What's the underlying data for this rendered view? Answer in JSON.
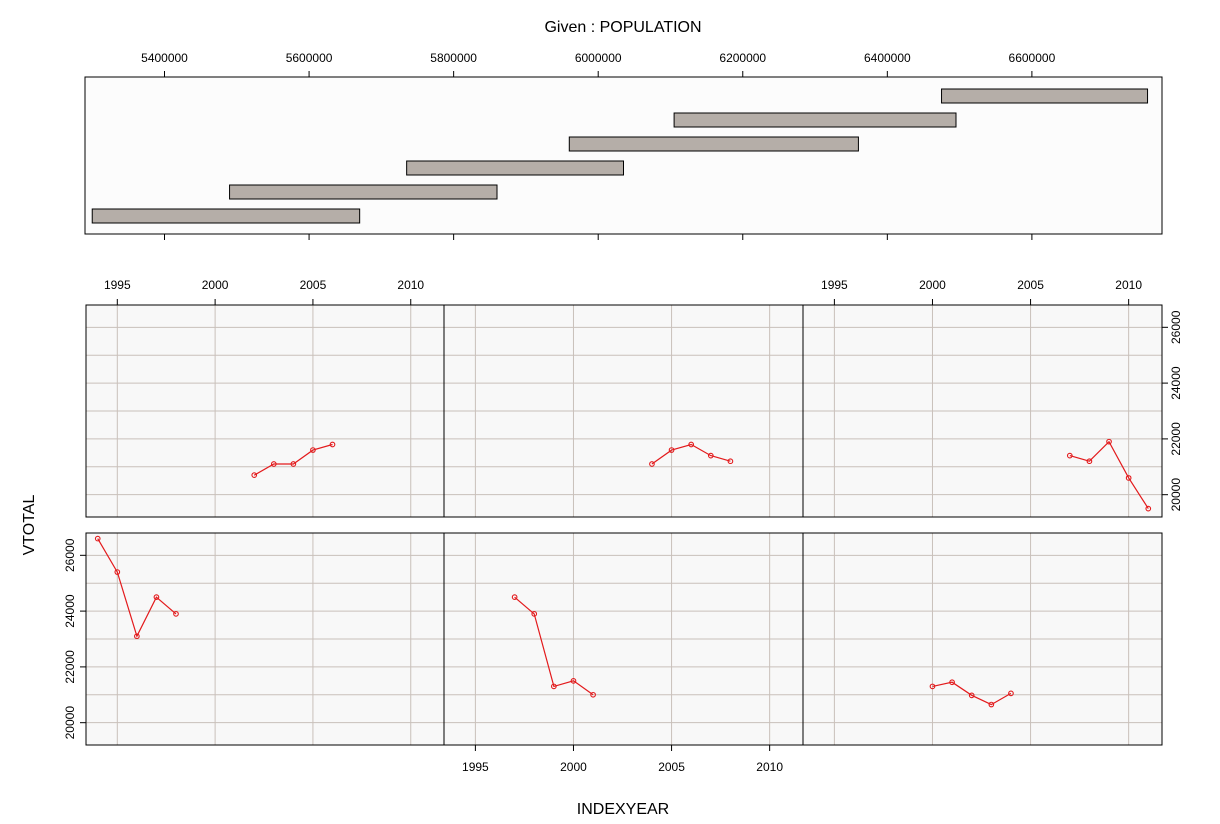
{
  "chart_data": {
    "type": "coplot",
    "title": "Given : POPULATION",
    "xlabel": "INDEXYEAR",
    "ylabel": "VTOTAL",
    "given": {
      "variable": "POPULATION",
      "ticks": [
        5400000,
        5600000,
        5800000,
        6000000,
        6200000,
        6400000,
        6600000
      ],
      "xlim": [
        5290000,
        6780000
      ],
      "intervals": [
        [
          5300000,
          5670000
        ],
        [
          5490000,
          5860000
        ],
        [
          5735000,
          6035000
        ],
        [
          5960000,
          6360000
        ],
        [
          6105000,
          6495000
        ],
        [
          6475000,
          6760000
        ]
      ]
    },
    "panel_xticks": [
      1995,
      2000,
      2005,
      2010
    ],
    "panel_yticks": [
      20000,
      22000,
      24000,
      26000
    ],
    "xlim": [
      1993.4,
      2011.7
    ],
    "ylim": [
      19200,
      26800
    ],
    "line_color": "#e31a1c",
    "bar_fill": "#b5aea8",
    "grid_color": "#c9c0ba",
    "panels": [
      {
        "row": 1,
        "col": 1,
        "x": [
          1994,
          1995,
          1996,
          1997,
          1998
        ],
        "y": [
          26600,
          25400,
          23100,
          24500,
          23900
        ]
      },
      {
        "row": 1,
        "col": 2,
        "x": [
          1997,
          1998,
          1999,
          2000,
          2001
        ],
        "y": [
          24500,
          23900,
          21300,
          21500,
          21000
        ]
      },
      {
        "row": 1,
        "col": 3,
        "x": [
          2000,
          2001,
          2002,
          2003,
          2004
        ],
        "y": [
          21300,
          21450,
          20980,
          20650,
          21050
        ]
      },
      {
        "row": 2,
        "col": 1,
        "x": [
          2002,
          2003,
          2004,
          2005,
          2006
        ],
        "y": [
          20700,
          21100,
          21100,
          21600,
          21800
        ]
      },
      {
        "row": 2,
        "col": 2,
        "x": [
          2004,
          2005,
          2006,
          2007,
          2008
        ],
        "y": [
          21100,
          21600,
          21800,
          21400,
          21200
        ]
      },
      {
        "row": 2,
        "col": 3,
        "x": [
          2007,
          2008,
          2009,
          2010,
          2011
        ],
        "y": [
          21400,
          21200,
          21900,
          20600,
          19500
        ]
      }
    ]
  }
}
